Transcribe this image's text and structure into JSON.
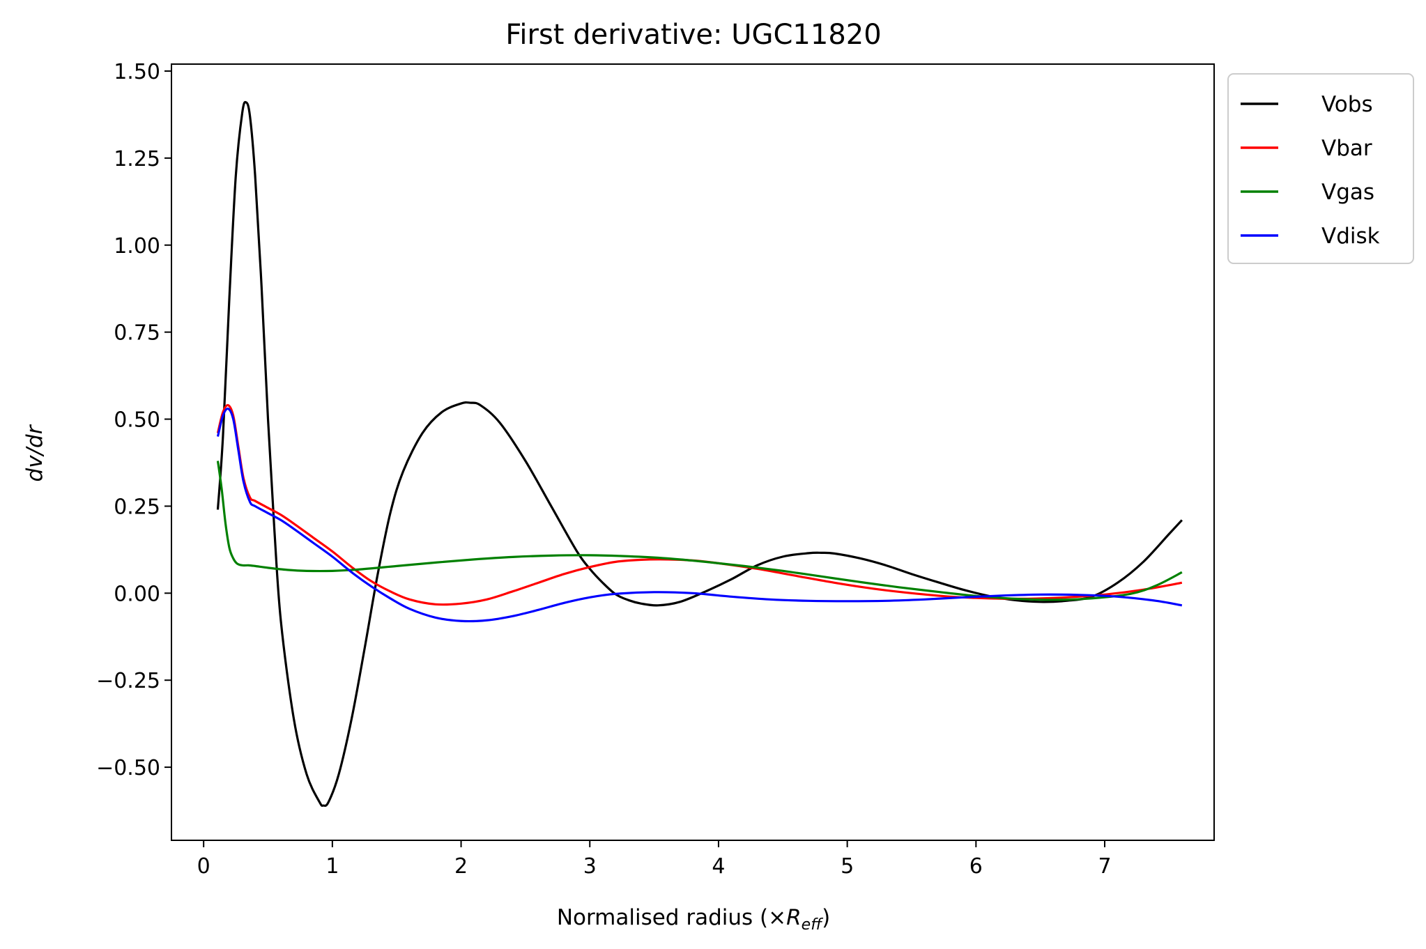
{
  "chart_data": {
    "type": "line",
    "title": "First derivative: UGC11820",
    "xlabel": {
      "prefix": "Normalised radius (×",
      "symbol": "R",
      "subscript": "eff",
      "suffix": ")"
    },
    "ylabel": {
      "symbol": "dv/dr"
    },
    "xlim": [
      -0.25,
      7.85
    ],
    "ylim": [
      -0.71,
      1.52
    ],
    "xticks": [
      0,
      1,
      2,
      3,
      4,
      5,
      6,
      7
    ],
    "xtick_labels": [
      "0",
      "1",
      "2",
      "3",
      "4",
      "5",
      "6",
      "7"
    ],
    "yticks": [
      -0.5,
      -0.25,
      0.0,
      0.25,
      0.5,
      0.75,
      1.0,
      1.25,
      1.5
    ],
    "ytick_labels": [
      "−0.50",
      "−0.25",
      "0.00",
      "0.25",
      "0.50",
      "0.75",
      "1.00",
      "1.25",
      "1.50"
    ],
    "grid": false,
    "legend_position": "outside-top-right",
    "series": [
      {
        "name": "Vobs",
        "color": "#000000",
        "x": [
          0.11,
          0.15,
          0.2,
          0.25,
          0.3,
          0.33,
          0.36,
          0.4,
          0.45,
          0.5,
          0.55,
          0.6,
          0.7,
          0.8,
          0.9,
          0.93,
          0.97,
          1.05,
          1.15,
          1.25,
          1.35,
          1.45,
          1.55,
          1.7,
          1.85,
          2.0,
          2.07,
          2.15,
          2.3,
          2.5,
          2.7,
          2.9,
          3.0,
          3.1,
          3.2,
          3.3,
          3.4,
          3.53,
          3.7,
          3.9,
          4.1,
          4.3,
          4.5,
          4.7,
          4.8,
          4.9,
          5.1,
          5.3,
          5.5,
          5.7,
          5.9,
          6.1,
          6.3,
          6.5,
          6.7,
          6.9,
          7.1,
          7.3,
          7.5,
          7.6
        ],
        "y": [
          0.24,
          0.45,
          0.85,
          1.2,
          1.38,
          1.41,
          1.37,
          1.2,
          0.88,
          0.5,
          0.18,
          -0.08,
          -0.36,
          -0.52,
          -0.6,
          -0.61,
          -0.6,
          -0.52,
          -0.36,
          -0.16,
          0.05,
          0.23,
          0.35,
          0.46,
          0.52,
          0.545,
          0.547,
          0.54,
          0.49,
          0.38,
          0.25,
          0.12,
          0.07,
          0.03,
          -0.003,
          -0.02,
          -0.03,
          -0.035,
          -0.025,
          0.005,
          0.04,
          0.08,
          0.105,
          0.115,
          0.116,
          0.114,
          0.1,
          0.08,
          0.055,
          0.032,
          0.01,
          -0.008,
          -0.02,
          -0.025,
          -0.022,
          -0.01,
          0.03,
          0.09,
          0.17,
          0.21
        ]
      },
      {
        "name": "Vbar",
        "color": "#ff0000",
        "x": [
          0.11,
          0.15,
          0.19,
          0.23,
          0.27,
          0.31,
          0.36,
          0.4,
          0.5,
          0.6,
          0.7,
          0.85,
          1.0,
          1.15,
          1.3,
          1.45,
          1.6,
          1.8,
          2.0,
          2.2,
          2.4,
          2.6,
          2.8,
          3.0,
          3.2,
          3.4,
          3.6,
          3.8,
          4.0,
          4.3,
          4.6,
          4.9,
          5.2,
          5.5,
          5.8,
          6.1,
          6.4,
          6.7,
          7.0,
          7.3,
          7.6
        ],
        "y": [
          0.46,
          0.52,
          0.54,
          0.51,
          0.42,
          0.33,
          0.275,
          0.265,
          0.245,
          0.225,
          0.2,
          0.16,
          0.12,
          0.075,
          0.035,
          0.005,
          -0.018,
          -0.032,
          -0.03,
          -0.018,
          0.005,
          0.03,
          0.055,
          0.075,
          0.09,
          0.096,
          0.097,
          0.094,
          0.086,
          0.07,
          0.05,
          0.03,
          0.013,
          0.0,
          -0.01,
          -0.015,
          -0.016,
          -0.012,
          -0.004,
          0.01,
          0.03
        ]
      },
      {
        "name": "Vgas",
        "color": "#008000",
        "x": [
          0.11,
          0.14,
          0.17,
          0.2,
          0.23,
          0.26,
          0.3,
          0.35,
          0.4,
          0.5,
          0.65,
          0.8,
          1.0,
          1.2,
          1.5,
          1.8,
          2.1,
          2.4,
          2.7,
          3.0,
          3.3,
          3.6,
          3.9,
          4.2,
          4.5,
          4.8,
          5.1,
          5.4,
          5.7,
          6.0,
          6.3,
          6.6,
          6.9,
          7.2,
          7.4,
          7.6
        ],
        "y": [
          0.38,
          0.3,
          0.2,
          0.13,
          0.1,
          0.085,
          0.08,
          0.08,
          0.078,
          0.073,
          0.067,
          0.064,
          0.064,
          0.068,
          0.078,
          0.088,
          0.097,
          0.104,
          0.108,
          0.109,
          0.106,
          0.1,
          0.09,
          0.078,
          0.064,
          0.048,
          0.032,
          0.017,
          0.004,
          -0.008,
          -0.016,
          -0.019,
          -0.015,
          -0.002,
          0.022,
          0.06
        ]
      },
      {
        "name": "Vdisk",
        "color": "#0000ff",
        "x": [
          0.11,
          0.15,
          0.19,
          0.23,
          0.27,
          0.31,
          0.36,
          0.4,
          0.5,
          0.6,
          0.7,
          0.85,
          1.0,
          1.15,
          1.3,
          1.45,
          1.6,
          1.8,
          2.0,
          2.2,
          2.4,
          2.6,
          2.8,
          3.0,
          3.2,
          3.5,
          3.8,
          4.1,
          4.4,
          4.7,
          5.0,
          5.3,
          5.6,
          5.9,
          6.2,
          6.5,
          6.8,
          7.1,
          7.4,
          7.6
        ],
        "y": [
          0.45,
          0.51,
          0.53,
          0.5,
          0.41,
          0.32,
          0.262,
          0.25,
          0.23,
          0.21,
          0.185,
          0.145,
          0.105,
          0.06,
          0.02,
          -0.015,
          -0.045,
          -0.07,
          -0.08,
          -0.078,
          -0.066,
          -0.048,
          -0.028,
          -0.012,
          -0.002,
          0.003,
          0.0,
          -0.01,
          -0.018,
          -0.022,
          -0.023,
          -0.022,
          -0.018,
          -0.012,
          -0.007,
          -0.004,
          -0.005,
          -0.01,
          -0.022,
          -0.035
        ]
      }
    ]
  }
}
